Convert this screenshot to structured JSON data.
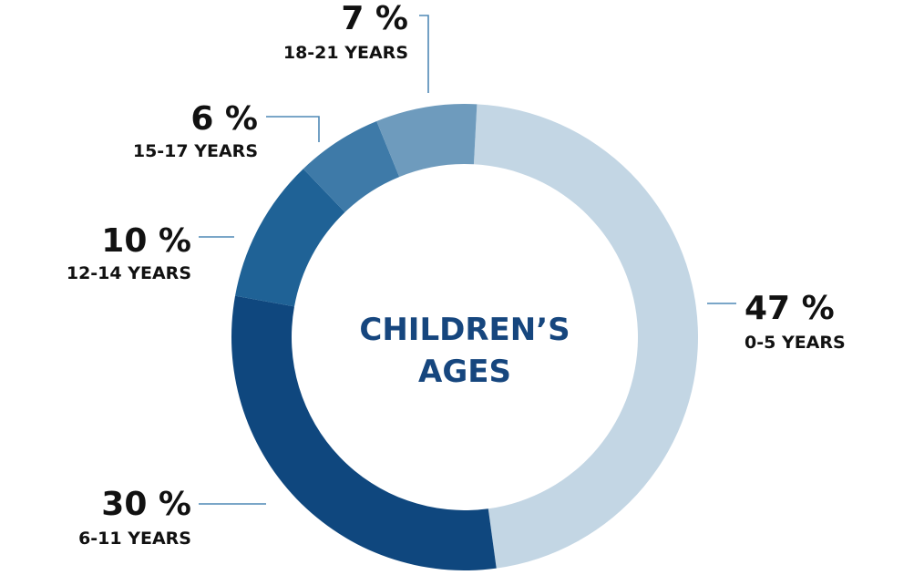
{
  "chart_data": {
    "type": "pie",
    "donut": true,
    "title_lines": [
      "CHILDREN’S",
      "AGES"
    ],
    "categories": [
      "0-5 YEARS",
      "6-11 YEARS",
      "12-14 YEARS",
      "15-17 YEARS",
      "18-21 YEARS"
    ],
    "values": [
      47,
      30,
      10,
      6,
      7
    ],
    "value_labels": [
      "47 %",
      "30 %",
      "10 %",
      "6 %",
      "7 %"
    ],
    "colors": [
      "#c3d6e4",
      "#0f477e",
      "#1f6296",
      "#3e7aa8",
      "#6e9bbd"
    ],
    "legend": "none",
    "grid": false
  }
}
